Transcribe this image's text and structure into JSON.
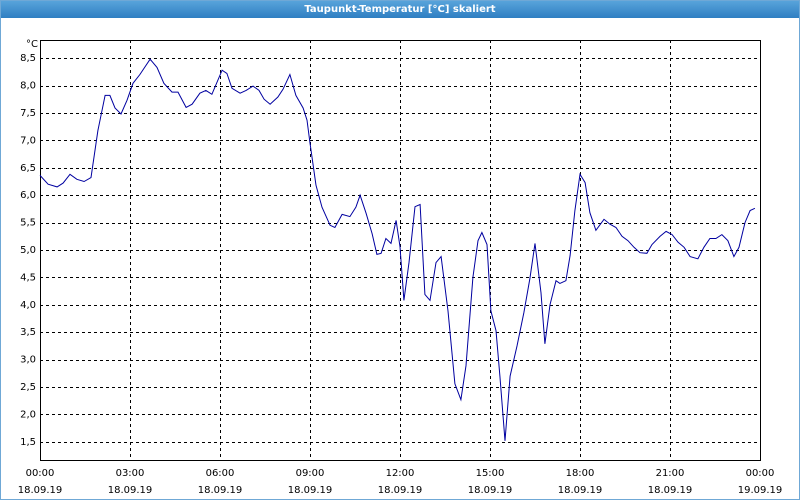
{
  "chart_data": {
    "type": "line",
    "title": "Taupunkt-Temperatur [°C] skaliert",
    "ylabel": "°C",
    "x": [
      0,
      0.27,
      0.57,
      0.77,
      1,
      1.23,
      1.47,
      1.7,
      1.93,
      2.17,
      2.33,
      2.5,
      2.7,
      2.9,
      3.1,
      3.33,
      3.67,
      3.9,
      4.13,
      4.4,
      4.6,
      4.87,
      5.07,
      5.33,
      5.53,
      5.73,
      6.07,
      6.23,
      6.4,
      6.67,
      6.87,
      7.1,
      7.3,
      7.47,
      7.67,
      7.93,
      8.1,
      8.33,
      8.53,
      8.77,
      8.9,
      9,
      9.2,
      9.4,
      9.67,
      9.83,
      10.07,
      10.33,
      10.53,
      10.67,
      10.87,
      11.07,
      11.23,
      11.37,
      11.53,
      11.7,
      11.87,
      12,
      12.13,
      12.3,
      12.5,
      12.67,
      12.83,
      13,
      13.2,
      13.37,
      13.6,
      13.83,
      14.03,
      14.2,
      14.43,
      14.6,
      14.73,
      14.9,
      15.03,
      15.2,
      15.33,
      15.5,
      15.67,
      15.9,
      16.13,
      16.33,
      16.5,
      16.7,
      16.83,
      17,
      17.2,
      17.33,
      17.53,
      17.67,
      17.83,
      18,
      18.17,
      18.33,
      18.53,
      18.8,
      19,
      19.2,
      19.4,
      19.6,
      19.8,
      20,
      20.23,
      20.4,
      20.67,
      20.87,
      21.07,
      21.27,
      21.47,
      21.67,
      21.93,
      22.13,
      22.33,
      22.53,
      22.73,
      22.93,
      23.13,
      23.3,
      23.5,
      23.67,
      23.83
    ],
    "series": [
      {
        "color": "#0000a0",
        "values": [
          6.36,
          6.2,
          6.15,
          6.22,
          6.38,
          6.29,
          6.25,
          6.32,
          7.18,
          7.82,
          7.82,
          7.59,
          7.48,
          7.73,
          8.04,
          8.2,
          8.48,
          8.33,
          8.04,
          7.88,
          7.88,
          7.6,
          7.66,
          7.86,
          7.91,
          7.84,
          8.28,
          8.22,
          7.95,
          7.86,
          7.91,
          7.99,
          7.91,
          7.75,
          7.66,
          7.79,
          7.93,
          8.2,
          7.82,
          7.59,
          7.37,
          6.95,
          6.18,
          5.78,
          5.45,
          5.41,
          5.65,
          5.61,
          5.78,
          6.0,
          5.67,
          5.3,
          4.92,
          4.94,
          5.21,
          5.12,
          5.54,
          5.06,
          4.08,
          4.77,
          5.79,
          5.83,
          4.19,
          4.08,
          4.77,
          4.88,
          3.89,
          2.56,
          2.27,
          2.89,
          4.5,
          5.17,
          5.32,
          5.1,
          3.89,
          3.53,
          2.7,
          1.52,
          2.7,
          3.25,
          3.86,
          4.48,
          5.12,
          4.22,
          3.29,
          4.0,
          4.44,
          4.39,
          4.44,
          4.9,
          5.72,
          6.38,
          6.23,
          5.68,
          5.36,
          5.56,
          5.47,
          5.41,
          5.25,
          5.17,
          5.05,
          4.95,
          4.94,
          5.1,
          5.25,
          5.34,
          5.28,
          5.14,
          5.05,
          4.88,
          4.84,
          5.05,
          5.21,
          5.21,
          5.28,
          5.17,
          4.88,
          5.05,
          5.5,
          5.72,
          5.76
        ]
      }
    ],
    "xlim": [
      0,
      24
    ],
    "xticks": [
      {
        "value": 0,
        "label": "00:00"
      },
      {
        "value": 3,
        "label": "03:00"
      },
      {
        "value": 6,
        "label": "06:00"
      },
      {
        "value": 9,
        "label": "09:00"
      },
      {
        "value": 12,
        "label": "12:00"
      },
      {
        "value": 15,
        "label": "15:00"
      },
      {
        "value": 18,
        "label": "18:00"
      },
      {
        "value": 21,
        "label": "21:00"
      },
      {
        "value": 24,
        "label": "00:00"
      }
    ],
    "x_dates": [
      "18.09.19",
      "18.09.19",
      "18.09.19",
      "18.09.19",
      "18.09.19",
      "18.09.19",
      "18.09.19",
      "18.09.19",
      "19.09.19"
    ],
    "ylim": [
      1.17,
      8.83
    ],
    "yticks": [
      {
        "value": 1.5,
        "label": "1,5"
      },
      {
        "value": 2,
        "label": "2,0"
      },
      {
        "value": 2.5,
        "label": "2,5"
      },
      {
        "value": 3,
        "label": "3,0"
      },
      {
        "value": 3.5,
        "label": "3,5"
      },
      {
        "value": 4,
        "label": "4,0"
      },
      {
        "value": 4.5,
        "label": "4,5"
      },
      {
        "value": 5,
        "label": "5,0"
      },
      {
        "value": 5.5,
        "label": "5,5"
      },
      {
        "value": 6,
        "label": "6,0"
      },
      {
        "value": 6.5,
        "label": "6,5"
      },
      {
        "value": 7,
        "label": "7,0"
      },
      {
        "value": 7.5,
        "label": "7,5"
      },
      {
        "value": 8,
        "label": "8,0"
      },
      {
        "value": 8.5,
        "label": "8,5"
      }
    ],
    "grid": true
  }
}
